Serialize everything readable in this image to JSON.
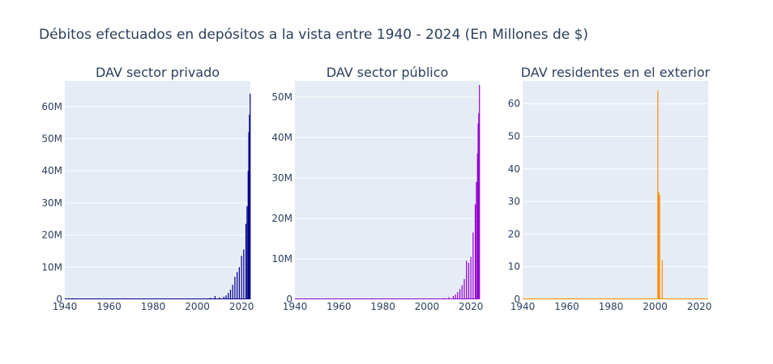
{
  "title": "Débitos efectuados en depósitos a la vista entre 1940 - 2024 (En Millones de $)",
  "colors": {
    "plot_bg": "#e5ecf6",
    "grid": "#ffffff",
    "text": "#2a3f5f"
  },
  "chart_data": [
    {
      "type": "bar",
      "title": "DAV sector privado",
      "color": "#00008b",
      "xlim": [
        1940,
        2024
      ],
      "ylim": [
        0,
        68000000
      ],
      "x_ticks": [
        1940,
        1960,
        1980,
        2000,
        2020
      ],
      "x_tick_labels": [
        "1940",
        "1960",
        "1980",
        "2000",
        "2020"
      ],
      "y_ticks": [
        0,
        10000000,
        20000000,
        30000000,
        40000000,
        50000000,
        60000000
      ],
      "y_tick_labels": [
        "0",
        "10M",
        "20M",
        "30M",
        "40M",
        "50M",
        "60M"
      ],
      "x": [
        2000,
        2003,
        2006,
        2008,
        2010,
        2012,
        2013,
        2014,
        2015,
        2016,
        2017,
        2018,
        2019,
        2020,
        2021,
        2022,
        2022.5,
        2023,
        2023.3,
        2023.6,
        2023.9
      ],
      "values": [
        200000,
        300000,
        500000,
        1000000,
        600000,
        800000,
        1200000,
        2000000,
        3000000,
        4500000,
        7000000,
        8500000,
        10000000,
        13500000,
        15500000,
        23500000,
        29000000,
        40000000,
        52000000,
        57500000,
        64000000
      ]
    },
    {
      "type": "bar",
      "title": "DAV sector público",
      "color": "#9400d3",
      "xlim": [
        1940,
        2024
      ],
      "ylim": [
        0,
        54000000
      ],
      "x_ticks": [
        1940,
        1960,
        1980,
        2000,
        2020
      ],
      "x_tick_labels": [
        "1940",
        "1960",
        "1980",
        "2000",
        "2020"
      ],
      "y_ticks": [
        0,
        10000000,
        20000000,
        30000000,
        40000000,
        50000000
      ],
      "y_tick_labels": [
        "0",
        "10M",
        "20M",
        "30M",
        "40M",
        "50M"
      ],
      "x": [
        2005,
        2008,
        2010,
        2012,
        2013,
        2014,
        2015,
        2016,
        2017,
        2018,
        2019,
        2020,
        2021,
        2022,
        2022.5,
        2023,
        2023.3,
        2023.6,
        2023.9
      ],
      "values": [
        200000,
        300000,
        500000,
        800000,
        1200000,
        1800000,
        2500000,
        3500000,
        5000000,
        9500000,
        9000000,
        10500000,
        16500000,
        23500000,
        29000000,
        36000000,
        43500000,
        46000000,
        53000000
      ]
    },
    {
      "type": "bar",
      "title": "DAV residentes en el exterior",
      "color": "#ff8c00",
      "xlim": [
        1940,
        2024
      ],
      "ylim": [
        0,
        67
      ],
      "x_ticks": [
        1940,
        1960,
        1980,
        2000,
        2020
      ],
      "x_tick_labels": [
        "1940",
        "1960",
        "1980",
        "2000",
        "2020"
      ],
      "y_ticks": [
        0,
        10,
        20,
        30,
        40,
        50,
        60
      ],
      "y_tick_labels": [
        "0",
        "10",
        "20",
        "30",
        "40",
        "50",
        "60"
      ],
      "x": [
        2001.2,
        2001.6,
        2002,
        2003.2
      ],
      "values": [
        64,
        33,
        32,
        12
      ]
    }
  ]
}
